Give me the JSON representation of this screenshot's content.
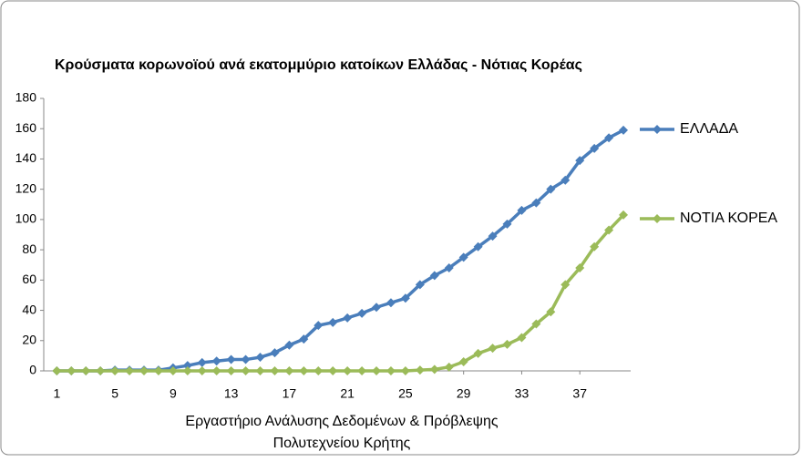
{
  "chart_data": {
    "type": "line",
    "title": "Κρούσματα κορωνοϊού ανά εκατομμύριο κατοίκων Ελλάδας - Νότιας Κορέας",
    "xlabel": [
      "Εργαστήριο Ανάλυσης Δεδομένων & Πρόβλεψης",
      "Πολυτεχνείου Κρήτης"
    ],
    "x": [
      1,
      2,
      3,
      4,
      5,
      6,
      7,
      8,
      9,
      10,
      11,
      12,
      13,
      14,
      15,
      16,
      17,
      18,
      19,
      20,
      21,
      22,
      23,
      24,
      25,
      26,
      27,
      28,
      29,
      30,
      31,
      32,
      33,
      34,
      35,
      36,
      37,
      38,
      39,
      40
    ],
    "series": [
      {
        "name": "ΕΛΛΑΔΑ",
        "color": "#4a7ebb",
        "values": [
          0,
          0,
          0,
          0,
          0.5,
          0.5,
          0.5,
          0.5,
          2,
          3.5,
          5.5,
          6.5,
          7.5,
          7.5,
          9,
          12,
          17,
          21,
          30,
          32,
          35,
          38,
          42,
          45,
          48,
          57,
          63,
          68,
          75,
          82,
          89,
          97,
          106,
          111,
          120,
          126,
          139,
          147,
          154,
          159
        ]
      },
      {
        "name": "ΝΟΤΙΑ ΚΟΡΕΑ",
        "color": "#9bbb59",
        "values": [
          0,
          0,
          0,
          0,
          0,
          0,
          0,
          0,
          0,
          0,
          0,
          0,
          0,
          0,
          0,
          0,
          0,
          0,
          0,
          0,
          0,
          0,
          0,
          0,
          0,
          0.5,
          1,
          2.5,
          6,
          11.5,
          15,
          17.5,
          22,
          31,
          39,
          57,
          68,
          82,
          93,
          103
        ]
      }
    ],
    "xlim": [
      0.1,
      40.5
    ],
    "xticks": [
      1,
      5,
      9,
      13,
      17,
      21,
      25,
      29,
      33,
      37
    ],
    "ylim": [
      0,
      180
    ],
    "yticks": [
      0,
      20,
      40,
      60,
      80,
      100,
      120,
      140,
      160,
      180
    ],
    "grid": false,
    "legend": "right"
  }
}
